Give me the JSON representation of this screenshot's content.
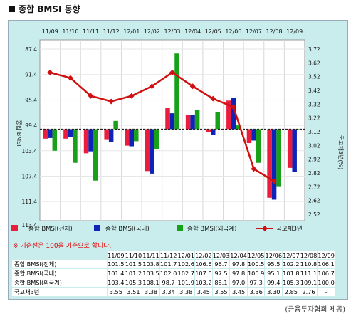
{
  "title": "종합 BMSI 동향",
  "note": "※ 기준선은 100을 기준으로 합니다.",
  "source": "(금융투자협회 제공)",
  "colors": {
    "total": "#ec1c3c",
    "domestic": "#1023b8",
    "foreign": "#18a018",
    "bond": "#d01010",
    "panel": "#c9ecec"
  },
  "chart_data": {
    "type": "bar",
    "categories": [
      "11/09",
      "11/10",
      "11/11",
      "11/12",
      "12/01",
      "12/02",
      "12/03",
      "12/04",
      "12/05",
      "12/06",
      "12/07",
      "12/08",
      "12/09"
    ],
    "baseline": 100,
    "y_left": {
      "label": "종합 BMSI",
      "ticks": [
        "87.4",
        "91.4",
        "95.4",
        "99.4",
        "103.4",
        "107.4",
        "111.4",
        "113.4"
      ],
      "reversed": true
    },
    "y_right": {
      "label": "국고채3년(%)",
      "ticks": [
        "3.72",
        "3.62",
        "3.52",
        "3.42",
        "3.32",
        "3.22",
        "3.12",
        "3.02",
        "2.92",
        "2.82",
        "2.72",
        "2.62",
        "2.52"
      ]
    },
    "series": [
      {
        "name": "종합 BMSI(전체)",
        "key": "total",
        "values": [
          101.5,
          101.5,
          103.8,
          101.7,
          102.6,
          106.6,
          96.7,
          97.8,
          100.5,
          95.5,
          102.2,
          110.8,
          106.1
        ]
      },
      {
        "name": "종합 BMSI(국내)",
        "key": "domestic",
        "values": [
          101.4,
          101.2,
          103.5,
          102.0,
          102.7,
          107.0,
          97.5,
          97.8,
          100.9,
          95.1,
          101.8,
          111.1,
          106.7
        ]
      },
      {
        "name": "종합 BMSI(외국계)",
        "key": "foreign",
        "values": [
          103.4,
          105.3,
          108.1,
          98.7,
          101.9,
          103.2,
          88.1,
          97.0,
          97.3,
          99.4,
          105.3,
          109.1,
          100.0
        ]
      },
      {
        "name": "국고채3년",
        "key": "bond",
        "type": "line",
        "values": [
          3.55,
          3.51,
          3.38,
          3.34,
          3.38,
          3.45,
          3.55,
          3.45,
          3.36,
          3.3,
          2.85,
          2.76,
          null
        ]
      }
    ]
  },
  "table": {
    "headers": [
      "11/09",
      "11/10",
      "11/11",
      "11/12",
      "12/01",
      "12/02",
      "12/03",
      "12/04",
      "12/05",
      "12/06",
      "12/07",
      "12/08",
      "12/09"
    ],
    "rows": [
      {
        "label": "종합 BMSI(전체)",
        "cells": [
          "101.5",
          "101.5",
          "103.8",
          "101.7",
          "102.6",
          "106.6",
          "96.7",
          "97.8",
          "100.5",
          "95.5",
          "102.2",
          "110.8",
          "106.1"
        ]
      },
      {
        "label": "종합 BMSI(국내)",
        "cells": [
          "101.4",
          "101.2",
          "103.5",
          "102.0",
          "102.7",
          "107.0",
          "97.5",
          "97.8",
          "100.9",
          "95.1",
          "101.8",
          "111.1",
          "106.7"
        ]
      },
      {
        "label": "종합 BMSI(외국계)",
        "cells": [
          "103.4",
          "105.3",
          "108.1",
          "98.7",
          "101.9",
          "103.2",
          "88.1",
          "97.0",
          "97.3",
          "99.4",
          "105.3",
          "109.1",
          "100.0"
        ]
      },
      {
        "label": "국고채3년",
        "cells": [
          "3.55",
          "3.51",
          "3.38",
          "3.34",
          "3.38",
          "3.45",
          "3.55",
          "3.45",
          "3.36",
          "3.30",
          "2.85",
          "2.76",
          "-"
        ]
      }
    ]
  }
}
